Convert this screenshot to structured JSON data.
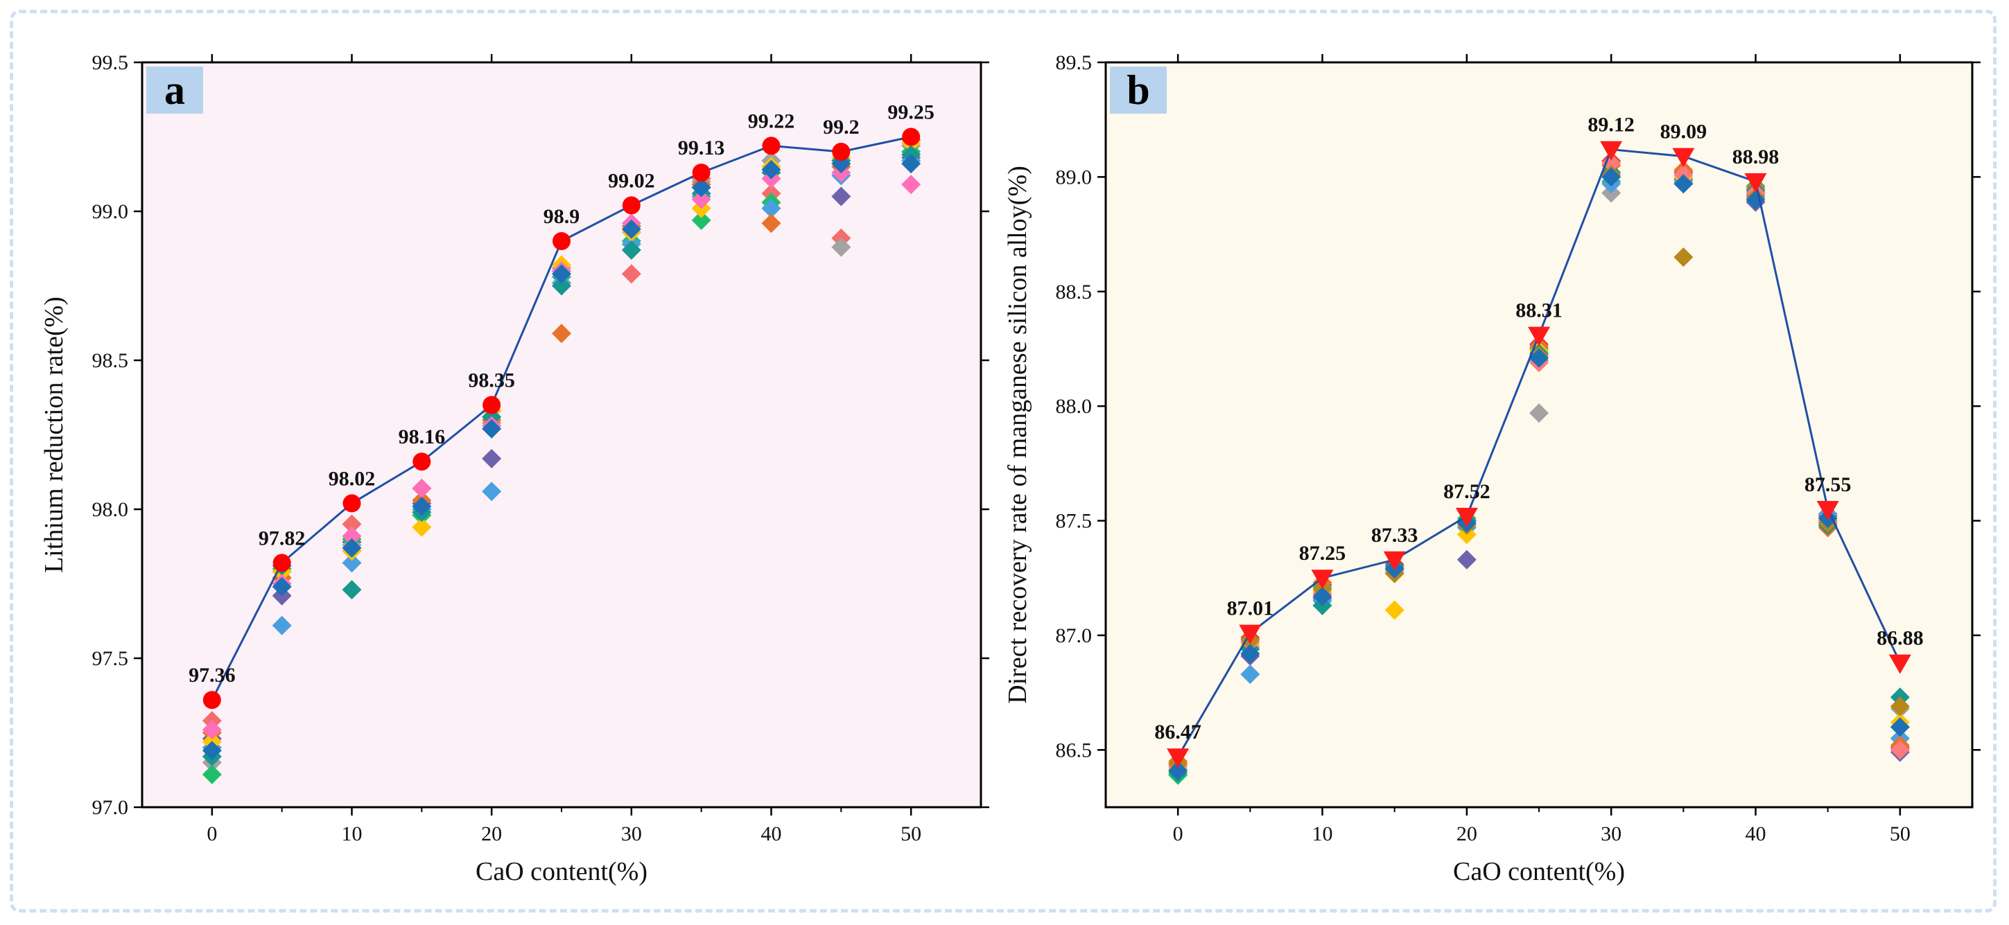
{
  "chart_data": [
    {
      "id": "a",
      "type": "scatter",
      "panel_label": "a",
      "xlabel": "CaO content(%)",
      "ylabel": "Lithium reduction rate(%)",
      "xlim": [
        -5,
        55
      ],
      "ylim": [
        97.0,
        99.5
      ],
      "xticks": [
        0,
        10,
        20,
        30,
        40,
        50
      ],
      "yticks": [
        97.0,
        97.5,
        98.0,
        98.5,
        99.0,
        99.5
      ],
      "x": [
        0,
        5,
        10,
        15,
        20,
        25,
        30,
        35,
        40,
        45,
        50
      ],
      "main_series": {
        "name": "Average",
        "marker": "circle",
        "color": "#ff0000",
        "line_color": "#1f4fa8",
        "values": [
          97.36,
          97.82,
          98.02,
          98.16,
          98.35,
          98.9,
          99.02,
          99.13,
          99.22,
          99.2,
          99.25
        ],
        "labels": [
          "97.36",
          "97.82",
          "98.02",
          "98.16",
          "98.35",
          "98.9",
          "99.02",
          "99.13",
          "99.22",
          "99.2",
          "99.25"
        ]
      },
      "scatter_series": [
        {
          "color": "#f46d6d",
          "values": [
            97.29,
            97.77,
            97.95,
            98.07,
            98.31,
            98.81,
            98.79,
            99.11,
            99.06,
            98.91,
            99.24
          ]
        },
        {
          "color": "#6e62ad",
          "values": [
            97.23,
            97.71,
            97.89,
            98.02,
            98.17,
            98.8,
            98.93,
            99.08,
            99.17,
            99.05,
            99.18
          ]
        },
        {
          "color": "#a3a3a3",
          "values": [
            97.15,
            97.79,
            97.88,
            98.0,
            98.29,
            98.81,
            98.95,
            99.1,
            99.17,
            98.88,
            99.22
          ]
        },
        {
          "color": "#1fbf6a",
          "values": [
            97.11,
            97.8,
            97.9,
            97.98,
            98.33,
            98.78,
            98.9,
            98.97,
            99.03,
            99.17,
            99.2
          ]
        },
        {
          "color": "#4a9fe0",
          "values": [
            97.2,
            97.61,
            97.82,
            98.0,
            98.06,
            98.76,
            98.89,
            99.05,
            99.01,
            99.12,
            99.17
          ]
        },
        {
          "color": "#e8722a",
          "values": [
            97.25,
            97.77,
            97.86,
            98.03,
            98.3,
            98.59,
            98.95,
            99.09,
            98.96,
            99.15,
            99.24
          ]
        },
        {
          "color": "#ffc400",
          "values": [
            97.22,
            97.79,
            97.86,
            97.94,
            98.33,
            98.82,
            98.93,
            99.01,
            99.15,
            99.18,
            99.23
          ]
        },
        {
          "color": "#17978f",
          "values": [
            97.17,
            97.81,
            97.73,
            97.99,
            98.31,
            98.75,
            98.87,
            99.06,
            99.13,
            99.17,
            99.19
          ]
        },
        {
          "color": "#ff6fb8",
          "values": [
            97.26,
            97.75,
            97.91,
            98.07,
            98.28,
            98.8,
            98.96,
            99.04,
            99.11,
            99.13,
            99.09
          ]
        },
        {
          "color": "#1f6fb5",
          "values": [
            97.19,
            97.74,
            97.87,
            98.01,
            98.27,
            98.79,
            98.94,
            99.08,
            99.14,
            99.16,
            99.16
          ]
        }
      ]
    },
    {
      "id": "b",
      "type": "scatter",
      "panel_label": "b",
      "xlabel": "CaO content(%)",
      "ylabel": "Direct recovery rate of manganese silicon alloy(%)",
      "xlim": [
        -5,
        55
      ],
      "ylim": [
        86.25,
        89.5
      ],
      "xticks": [
        0,
        10,
        20,
        30,
        40,
        50
      ],
      "yticks": [
        86.5,
        87.0,
        87.5,
        88.0,
        88.5,
        89.0,
        89.5
      ],
      "x": [
        0,
        5,
        10,
        15,
        20,
        25,
        30,
        35,
        40,
        45,
        50
      ],
      "main_series": {
        "name": "Average",
        "marker": "triangle-down",
        "color": "#ff1a1a",
        "line_color": "#1f4fa8",
        "values": [
          86.47,
          87.01,
          87.25,
          87.33,
          87.52,
          88.31,
          89.12,
          89.09,
          88.98,
          87.55,
          86.88
        ],
        "labels": [
          "86.47",
          "87.01",
          "87.25",
          "87.33",
          "87.52",
          "88.31",
          "89.12",
          "89.09",
          "88.98",
          "87.55",
          "86.88"
        ]
      },
      "scatter_series": [
        {
          "color": "#e23b3b",
          "values": [
            86.44,
            86.99,
            87.22,
            87.31,
            87.5,
            88.27,
            89.07,
            89.02,
            88.95,
            87.52,
            86.51
          ]
        },
        {
          "color": "#6e62ad",
          "values": [
            86.42,
            86.91,
            87.16,
            87.3,
            87.33,
            88.22,
            89.01,
            88.99,
            88.89,
            87.5,
            86.49
          ]
        },
        {
          "color": "#a3a3a3",
          "values": [
            86.43,
            86.95,
            87.2,
            87.28,
            87.49,
            87.97,
            88.93,
            89.0,
            88.94,
            87.51,
            86.68
          ]
        },
        {
          "color": "#1fbf6a",
          "values": [
            86.39,
            86.97,
            87.21,
            87.29,
            87.51,
            88.25,
            88.98,
            89.01,
            88.96,
            87.49,
            86.6
          ]
        },
        {
          "color": "#4a9fe0",
          "values": [
            86.41,
            86.83,
            87.15,
            87.27,
            87.47,
            88.2,
            88.97,
            88.98,
            88.92,
            87.53,
            86.55
          ]
        },
        {
          "color": "#e8722a",
          "values": [
            86.45,
            86.98,
            87.23,
            87.27,
            87.5,
            88.26,
            89.05,
            89.03,
            88.95,
            87.47,
            86.52
          ]
        },
        {
          "color": "#ffc400",
          "values": [
            86.42,
            86.96,
            87.19,
            87.11,
            87.44,
            88.24,
            89.0,
            89.0,
            88.93,
            87.5,
            86.62
          ]
        },
        {
          "color": "#17978f",
          "values": [
            86.4,
            86.94,
            87.13,
            87.3,
            87.5,
            88.23,
            89.02,
            88.97,
            88.94,
            87.48,
            86.73
          ]
        },
        {
          "color": "#ff7a7a",
          "values": [
            86.43,
            86.97,
            87.18,
            87.29,
            87.49,
            88.19,
            89.06,
            89.01,
            88.93,
            87.5,
            86.5
          ]
        },
        {
          "color": "#b8861b",
          "values": [
            86.44,
            86.98,
            87.2,
            87.27,
            87.48,
            88.22,
            89.01,
            88.65,
            88.91,
            87.49,
            86.69
          ]
        },
        {
          "color": "#1f6fb5",
          "values": [
            86.41,
            86.92,
            87.17,
            87.29,
            87.49,
            88.21,
            89.0,
            88.97,
            88.9,
            87.51,
            86.6
          ]
        }
      ]
    }
  ]
}
